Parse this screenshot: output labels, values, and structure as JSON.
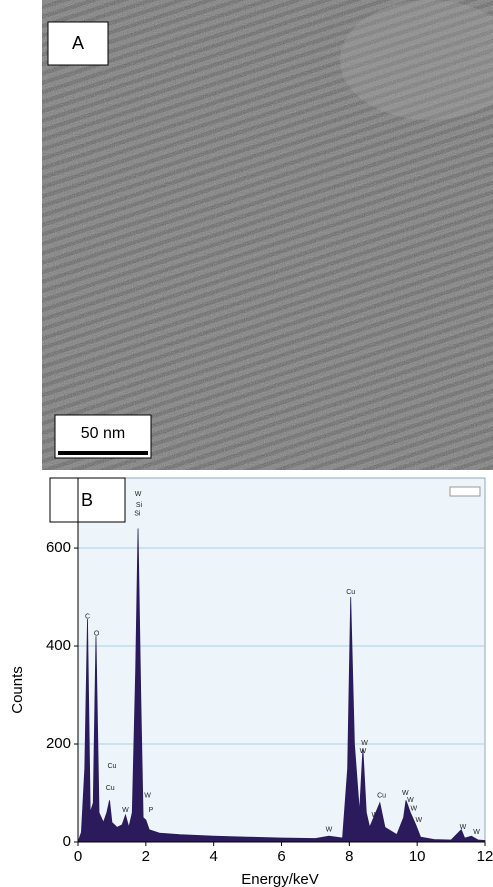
{
  "panel_a": {
    "label": "A",
    "scale_bar": "50 nm"
  },
  "chart_data": {
    "type": "area",
    "panel_label": "B",
    "x_label": "Energy/keV",
    "y_label": "Counts",
    "xlim": [
      0,
      12
    ],
    "xticks": [
      0,
      2,
      4,
      6,
      8,
      10,
      12
    ],
    "ylim": [
      0,
      743
    ],
    "yticks": [
      0,
      200,
      400,
      600
    ],
    "grid": true,
    "x": [
      0,
      0.1,
      0.2,
      0.28,
      0.36,
      0.45,
      0.53,
      0.62,
      0.75,
      0.85,
      0.93,
      1.0,
      1.15,
      1.3,
      1.4,
      1.5,
      1.6,
      1.7,
      1.77,
      1.85,
      1.92,
      2.0,
      2.1,
      2.4,
      3,
      4,
      5,
      6,
      7,
      7.4,
      7.8,
      7.95,
      8.04,
      8.15,
      8.3,
      8.4,
      8.5,
      8.6,
      8.9,
      9.05,
      9.4,
      9.6,
      9.67,
      9.8,
      9.96,
      10.1,
      10.5,
      11,
      11.3,
      11.4,
      11.6,
      11.8,
      12
    ],
    "series": [
      {
        "color": "#2b1b5c",
        "values": [
          0,
          20,
          150,
          455,
          60,
          80,
          420,
          60,
          40,
          60,
          85,
          40,
          30,
          35,
          55,
          30,
          60,
          350,
          640,
          300,
          50,
          45,
          25,
          18,
          15,
          12,
          10,
          8,
          7,
          12,
          8,
          150,
          500,
          200,
          60,
          190,
          60,
          30,
          80,
          30,
          15,
          50,
          85,
          60,
          35,
          10,
          5,
          4,
          25,
          8,
          12,
          4,
          3
        ]
      }
    ],
    "annotations": [
      {
        "x": 0.28,
        "y": 460,
        "text": "C"
      },
      {
        "x": 0.55,
        "y": 425,
        "text": "O"
      },
      {
        "x": 1.0,
        "y": 155,
        "text": "Cu"
      },
      {
        "x": 0.95,
        "y": 110,
        "text": "Cu"
      },
      {
        "x": 1.4,
        "y": 65,
        "text": "W"
      },
      {
        "x": 1.77,
        "y": 710,
        "text": "W"
      },
      {
        "x": 1.8,
        "y": 688,
        "text": "Si"
      },
      {
        "x": 1.75,
        "y": 670,
        "text": "Si"
      },
      {
        "x": 2.05,
        "y": 95,
        "text": "W"
      },
      {
        "x": 2.15,
        "y": 65,
        "text": "P"
      },
      {
        "x": 7.4,
        "y": 25,
        "text": "W"
      },
      {
        "x": 8.04,
        "y": 510,
        "text": "Cu"
      },
      {
        "x": 8.45,
        "y": 202,
        "text": "W"
      },
      {
        "x": 8.4,
        "y": 185,
        "text": "W"
      },
      {
        "x": 8.95,
        "y": 95,
        "text": "Cu"
      },
      {
        "x": 8.75,
        "y": 55,
        "text": "W"
      },
      {
        "x": 9.65,
        "y": 100,
        "text": "W"
      },
      {
        "x": 9.8,
        "y": 85,
        "text": "W"
      },
      {
        "x": 9.9,
        "y": 68,
        "text": "W"
      },
      {
        "x": 10.05,
        "y": 45,
        "text": "W"
      },
      {
        "x": 11.35,
        "y": 30,
        "text": "W"
      },
      {
        "x": 11.75,
        "y": 20,
        "text": "W"
      }
    ]
  }
}
